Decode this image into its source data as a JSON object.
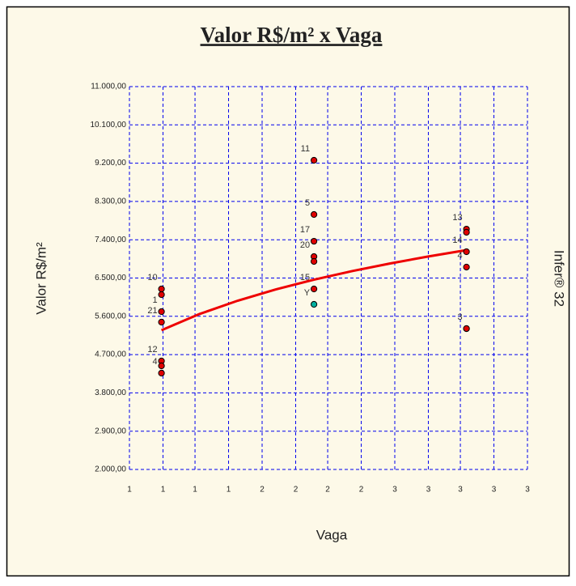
{
  "chart_data": {
    "type": "scatter",
    "title": "Valor R$/m² x Vaga",
    "x_label": "Vaga",
    "y_label": "Valor R$/m²",
    "side_label": "Infer® 32",
    "xlim": [
      0.79,
      3.4
    ],
    "ylim": [
      2000,
      11000
    ],
    "xticks": [
      {
        "value": 0.79,
        "label": "1"
      },
      {
        "value": 1.01,
        "label": "1"
      },
      {
        "value": 1.22,
        "label": "1"
      },
      {
        "value": 1.44,
        "label": "1"
      },
      {
        "value": 1.66,
        "label": "2"
      },
      {
        "value": 1.88,
        "label": "2"
      },
      {
        "value": 2.09,
        "label": "2"
      },
      {
        "value": 2.31,
        "label": "2"
      },
      {
        "value": 2.53,
        "label": "3"
      },
      {
        "value": 2.75,
        "label": "3"
      },
      {
        "value": 2.96,
        "label": "3"
      },
      {
        "value": 3.18,
        "label": "3"
      },
      {
        "value": 3.4,
        "label": "3"
      }
    ],
    "yticks": [
      {
        "value": 2000,
        "label": "2.000,00"
      },
      {
        "value": 2900,
        "label": "2.900,00"
      },
      {
        "value": 3800,
        "label": "3.800,00"
      },
      {
        "value": 4700,
        "label": "4.700,00"
      },
      {
        "value": 5600,
        "label": "5.600,00"
      },
      {
        "value": 6500,
        "label": "6.500,00"
      },
      {
        "value": 7400,
        "label": "7.400,00"
      },
      {
        "value": 8300,
        "label": "8.300,00"
      },
      {
        "value": 9200,
        "label": "9.200,00"
      },
      {
        "value": 10100,
        "label": "10.100,00"
      },
      {
        "value": 11000,
        "label": "11.000,00"
      }
    ],
    "grid": true,
    "grid_color": "#0000ee",
    "series": [
      {
        "color": "#e00000",
        "x": [
          1,
          1,
          1,
          1,
          1,
          1,
          1,
          2,
          2,
          2,
          2,
          2,
          2,
          3,
          3,
          3,
          3,
          3,
          3
        ],
        "values": [
          6243,
          6110,
          5710,
          5463,
          4550,
          4435,
          4264,
          9268,
          7993,
          7365,
          7004,
          6890,
          6243,
          7650,
          7575,
          7118,
          6757,
          5311,
          5311
        ],
        "labels": [
          "10",
          null,
          "1",
          "21",
          "12",
          null,
          "4",
          "11",
          "5",
          "17",
          "20",
          null,
          "15",
          "13",
          null,
          "14",
          "4",
          null,
          "3"
        ]
      },
      {
        "color": "#00b0a0",
        "x": [
          2
        ],
        "values": [
          5881
        ],
        "labels": [
          "Y"
        ]
      }
    ],
    "trend": {
      "color": "#ee0000",
      "x": [
        1,
        1.25,
        1.5,
        1.75,
        2,
        2.25,
        2.5,
        2.75,
        3
      ],
      "values": [
        5272,
        5655,
        5967,
        6232,
        6461,
        6663,
        6843,
        7007,
        7156
      ]
    }
  }
}
